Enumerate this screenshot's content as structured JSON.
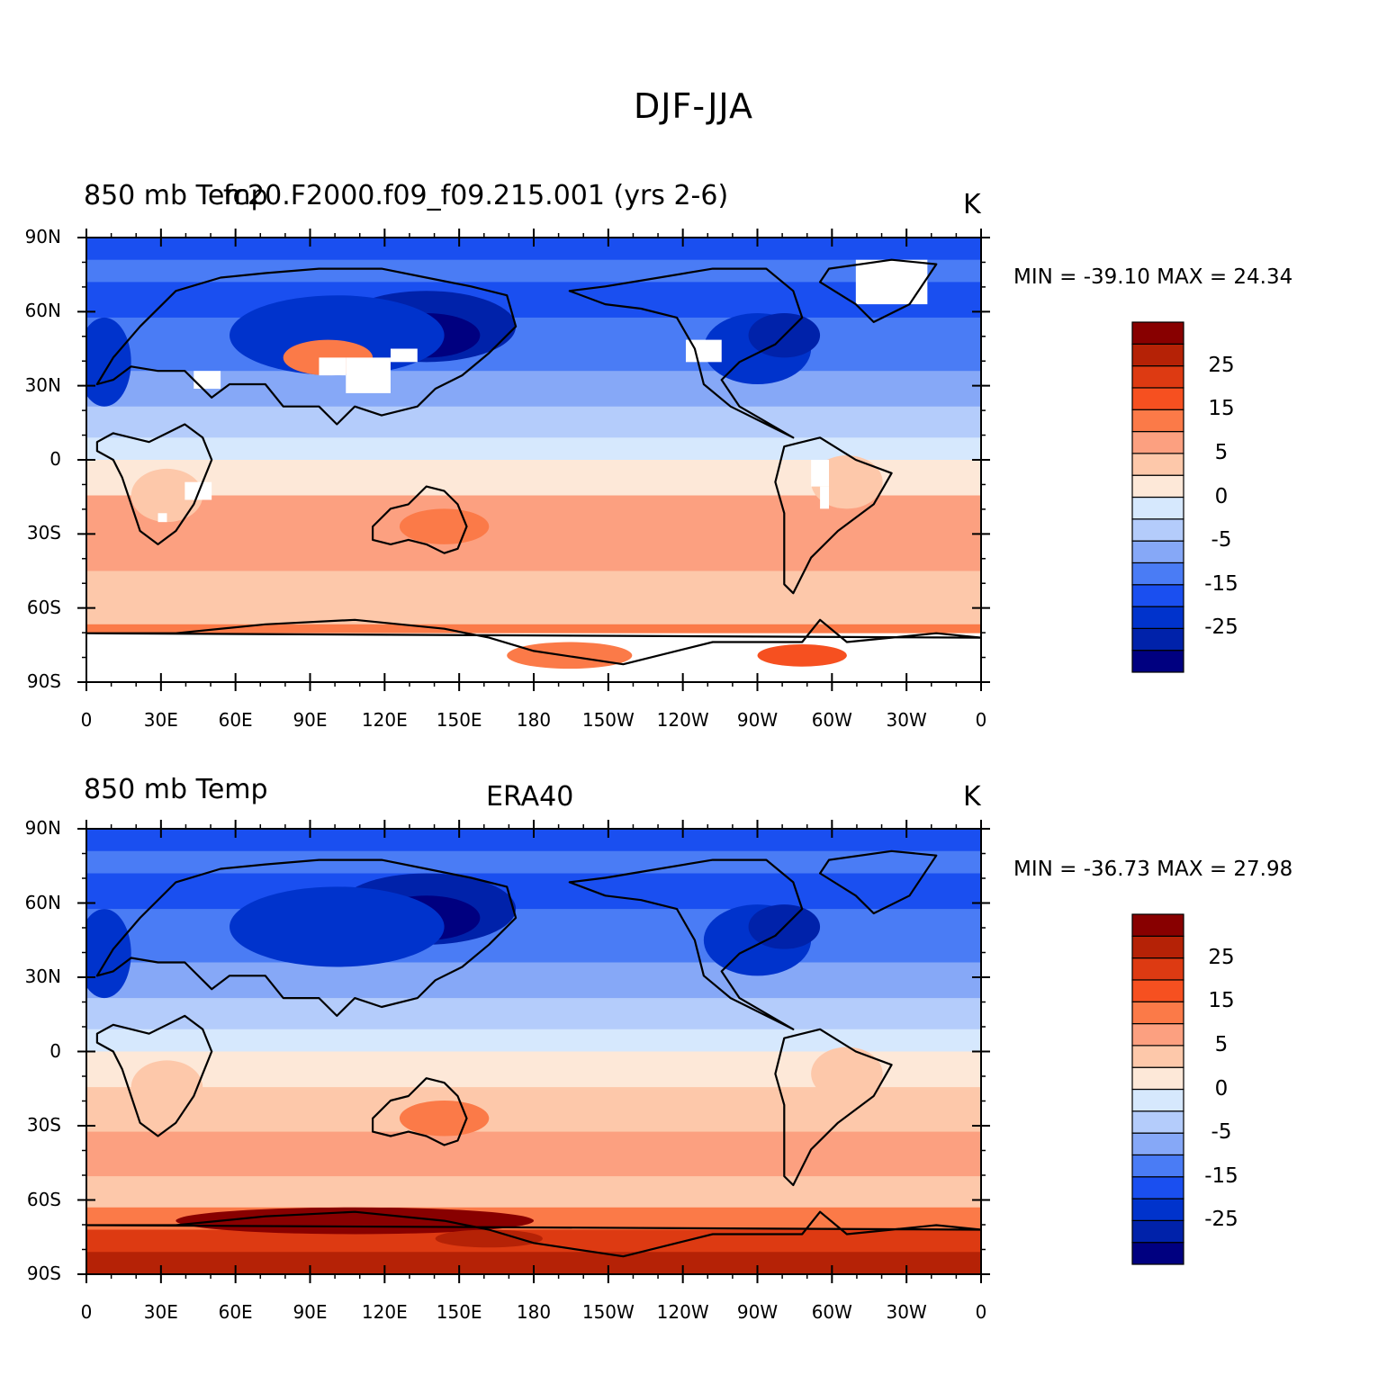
{
  "figure": {
    "title": "DJF-JJA"
  },
  "colorbar": {
    "colors": [
      "#000080",
      "#0022aa",
      "#0033cc",
      "#1a4ff0",
      "#4a7cf5",
      "#86a8f7",
      "#b4ccfb",
      "#d6e8fd",
      "#fde8d8",
      "#fdc8aa",
      "#fca080",
      "#fb7a48",
      "#f65020",
      "#dd3a12",
      "#b52206",
      "#880000"
    ],
    "labels": [
      "-25",
      "-15",
      "-5",
      "0",
      "5",
      "15",
      "25"
    ]
  },
  "panels": [
    {
      "left_title": "850 mb Temp",
      "center_title": "fc20.F2000.f09_f09.215.001 (yrs 2-6)",
      "units": "K",
      "stats_text": "MIN = -39.10 MAX =   24.34",
      "min": -39.1,
      "max": 24.34,
      "has_missing_masks": true
    },
    {
      "left_title": "850 mb Temp",
      "center_title": "ERA40",
      "units": "K",
      "stats_text": "MIN = -36.73 MAX =   27.98",
      "min": -36.73,
      "max": 27.98,
      "has_missing_masks": false
    }
  ],
  "lat_labels": [
    "90N",
    "60N",
    "30N",
    "0",
    "30S",
    "60S",
    "90S"
  ],
  "lon_labels": [
    "0",
    "30E",
    "60E",
    "90E",
    "120E",
    "150E",
    "180",
    "150W",
    "120W",
    "90W",
    "60W",
    "30W",
    "0"
  ]
}
